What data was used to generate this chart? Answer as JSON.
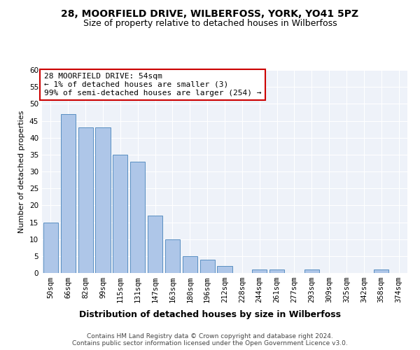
{
  "title": "28, MOORFIELD DRIVE, WILBERFOSS, YORK, YO41 5PZ",
  "subtitle": "Size of property relative to detached houses in Wilberfoss",
  "xlabel": "Distribution of detached houses by size in Wilberfoss",
  "ylabel": "Number of detached properties",
  "categories": [
    "50sqm",
    "66sqm",
    "82sqm",
    "99sqm",
    "115sqm",
    "131sqm",
    "147sqm",
    "163sqm",
    "180sqm",
    "196sqm",
    "212sqm",
    "228sqm",
    "244sqm",
    "261sqm",
    "277sqm",
    "293sqm",
    "309sqm",
    "325sqm",
    "342sqm",
    "358sqm",
    "374sqm"
  ],
  "values": [
    15,
    47,
    43,
    43,
    35,
    33,
    17,
    10,
    5,
    4,
    2,
    0,
    1,
    1,
    0,
    1,
    0,
    0,
    0,
    1,
    0
  ],
  "bar_color": "#aec6e8",
  "bar_edge_color": "#5a8fc2",
  "annotation_text": "28 MOORFIELD DRIVE: 54sqm\n← 1% of detached houses are smaller (3)\n99% of semi-detached houses are larger (254) →",
  "annotation_box_color": "#ffffff",
  "annotation_box_edge_color": "#cc0000",
  "ylim": [
    0,
    60
  ],
  "yticks": [
    0,
    5,
    10,
    15,
    20,
    25,
    30,
    35,
    40,
    45,
    50,
    55,
    60
  ],
  "background_color": "#eef2f9",
  "grid_color": "#ffffff",
  "footer_text": "Contains HM Land Registry data © Crown copyright and database right 2024.\nContains public sector information licensed under the Open Government Licence v3.0.",
  "title_fontsize": 10,
  "subtitle_fontsize": 9,
  "xlabel_fontsize": 9,
  "ylabel_fontsize": 8,
  "tick_fontsize": 7.5,
  "annotation_fontsize": 8,
  "footer_fontsize": 6.5
}
